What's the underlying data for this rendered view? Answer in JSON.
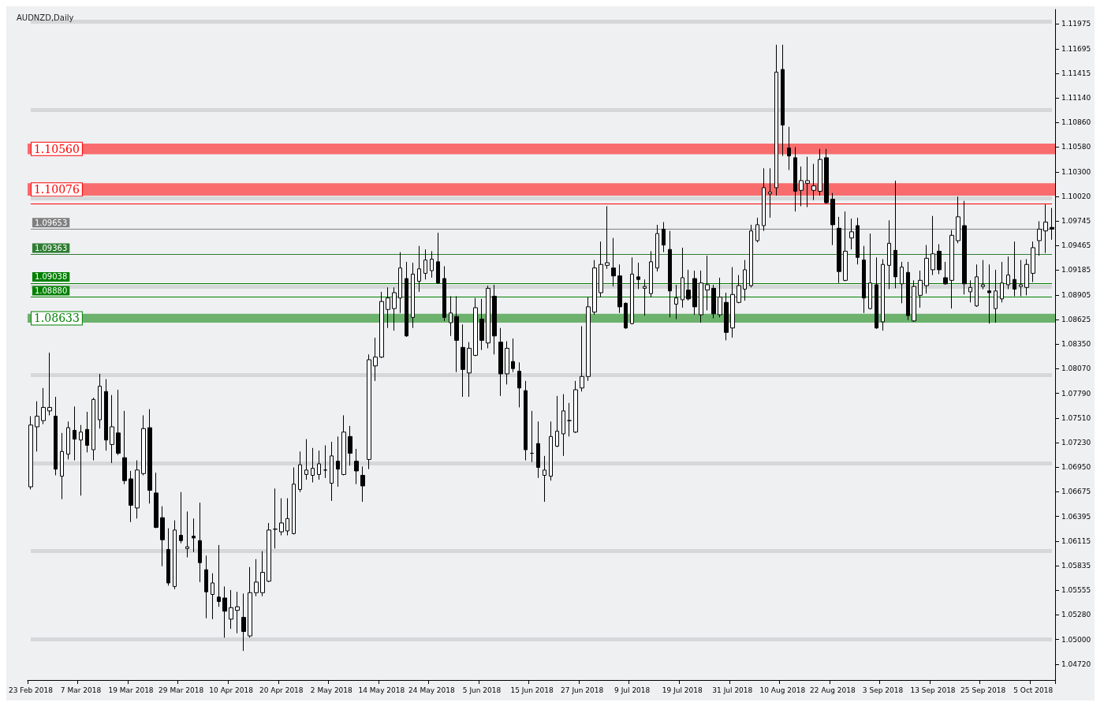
{
  "chart_data": {
    "type": "candlestick",
    "title": "AUDNZD,Daily",
    "categories": [
      "23 Feb 2018",
      null,
      null,
      null,
      null,
      null,
      null,
      null,
      "7 Mar 2018",
      null,
      null,
      null,
      null,
      null,
      null,
      null,
      "19 Mar 2018",
      null,
      null,
      null,
      null,
      null,
      null,
      null,
      "29 Mar 2018",
      null,
      null,
      null,
      null,
      null,
      null,
      null,
      "10 Apr 2018",
      null,
      null,
      null,
      null,
      null,
      null,
      null,
      "20 Apr 2018",
      null,
      null,
      null,
      null,
      null,
      null,
      null,
      "2 May 2018",
      null,
      null,
      null,
      null,
      null,
      null,
      null,
      "14 May 2018",
      null,
      null,
      null,
      null,
      null,
      null,
      null,
      "24 May 2018",
      null,
      null,
      null,
      null,
      null,
      null,
      null,
      "5 Jun 2018",
      null,
      null,
      null,
      null,
      null,
      null,
      null,
      "15 Jun 2018",
      null,
      null,
      null,
      null,
      null,
      null,
      null,
      "27 Jun 2018",
      null,
      null,
      null,
      null,
      null,
      null,
      null,
      "9 Jul 2018",
      null,
      null,
      null,
      null,
      null,
      null,
      null,
      "19 Jul 2018",
      null,
      null,
      null,
      null,
      null,
      null,
      null,
      "31 Jul 2018",
      null,
      null,
      null,
      null,
      null,
      null,
      null,
      "10 Aug 2018",
      null,
      null,
      null,
      null,
      null,
      null,
      null,
      "22 Aug 2018",
      null,
      null,
      null,
      null,
      null,
      null,
      null,
      "3 Sep 2018",
      null,
      null,
      null,
      null,
      null,
      null,
      null,
      "13 Sep 2018",
      null,
      null,
      null,
      null,
      null,
      null,
      null,
      "25 Sep 2018",
      null,
      null,
      null,
      null,
      null,
      null,
      null,
      "5 Oct 2018",
      null,
      null,
      null
    ],
    "series": [
      {
        "color": "#000000",
        "ohlc": [
          [
            1.0673,
            1.0753,
            1.067,
            1.0743
          ],
          [
            1.0741,
            1.077,
            1.0713,
            1.0753
          ],
          [
            1.0748,
            1.0785,
            1.0744,
            1.0763
          ],
          [
            1.0759,
            1.0825,
            1.0754,
            1.0763
          ],
          [
            1.0753,
            1.0775,
            1.0686,
            1.0693
          ],
          [
            1.0685,
            1.0734,
            1.0659,
            1.0713
          ],
          [
            1.071,
            1.0747,
            1.0704,
            1.074
          ],
          [
            1.0737,
            1.0764,
            1.0703,
            1.0727
          ],
          [
            1.0726,
            1.0743,
            1.0663,
            1.0735
          ],
          [
            1.0738,
            1.0758,
            1.0712,
            1.072
          ],
          [
            1.0715,
            1.0774,
            1.0703,
            1.0772
          ],
          [
            1.0749,
            1.0801,
            1.0739,
            1.0787
          ],
          [
            1.0781,
            1.0795,
            1.0714,
            1.0726
          ],
          [
            1.0721,
            1.0777,
            1.07,
            1.0741
          ],
          [
            1.0734,
            1.0783,
            1.0709,
            1.0711
          ],
          [
            1.0706,
            1.0759,
            1.0676,
            1.068
          ],
          [
            1.0682,
            1.0691,
            1.0633,
            1.0652
          ],
          [
            1.0649,
            1.0703,
            1.0637,
            1.0692
          ],
          [
            1.0688,
            1.0754,
            1.0686,
            1.0739
          ],
          [
            1.074,
            1.0761,
            1.0654,
            1.0669
          ],
          [
            1.0666,
            1.0689,
            1.0626,
            1.0627
          ],
          [
            1.0638,
            1.0651,
            1.0583,
            1.0613
          ],
          [
            1.0602,
            1.0626,
            1.0561,
            1.0564
          ],
          [
            1.056,
            1.0635,
            1.0557,
            1.0624
          ],
          [
            1.0618,
            1.0667,
            1.0609,
            1.0612
          ],
          [
            1.0603,
            1.0645,
            1.0593,
            1.0605
          ],
          [
            1.0617,
            1.0637,
            1.0599,
            1.0615
          ],
          [
            1.0612,
            1.0655,
            1.0565,
            1.0587
          ],
          [
            1.0579,
            1.0595,
            1.0524,
            1.0554
          ],
          [
            1.0551,
            1.0575,
            1.0523,
            1.0564
          ],
          [
            1.0548,
            1.0607,
            1.0537,
            1.0543
          ],
          [
            1.0547,
            1.056,
            1.0502,
            1.0532
          ],
          [
            1.0523,
            1.0556,
            1.0512,
            1.0536
          ],
          [
            1.0533,
            1.0554,
            1.0507,
            1.0537
          ],
          [
            1.0525,
            1.0552,
            1.0487,
            1.0509
          ],
          [
            1.0504,
            1.0582,
            1.0502,
            1.0553
          ],
          [
            1.0553,
            1.0591,
            1.0549,
            1.0565
          ],
          [
            1.0553,
            1.06,
            1.0549,
            1.0576
          ],
          [
            1.0566,
            1.0632,
            1.0565,
            1.0624
          ],
          [
            1.0625,
            1.0671,
            1.0603,
            1.0625
          ],
          [
            1.0622,
            1.066,
            1.0618,
            1.0632
          ],
          [
            1.0623,
            1.066,
            1.0618,
            1.0637
          ],
          [
            1.062,
            1.0695,
            1.0619,
            1.0676
          ],
          [
            1.067,
            1.0713,
            1.0667,
            1.0698
          ],
          [
            1.0687,
            1.0727,
            1.0681,
            1.0692
          ],
          [
            1.0686,
            1.0717,
            1.0678,
            1.0694
          ],
          [
            1.0687,
            1.0714,
            1.0681,
            1.0699
          ],
          [
            1.0692,
            1.072,
            1.0683,
            1.0692
          ],
          [
            1.0677,
            1.0724,
            1.0657,
            1.0708
          ],
          [
            1.0702,
            1.073,
            1.0673,
            1.0693
          ],
          [
            1.0687,
            1.0754,
            1.0686,
            1.0735
          ],
          [
            1.073,
            1.0742,
            1.0697,
            1.0711
          ],
          [
            1.0702,
            1.0716,
            1.0676,
            1.0691
          ],
          [
            1.0686,
            1.0696,
            1.0656,
            1.0674
          ],
          [
            1.0704,
            1.0823,
            1.0693,
            1.0817
          ],
          [
            1.081,
            1.0842,
            1.0793,
            1.082
          ],
          [
            1.082,
            1.0894,
            1.0819,
            1.0883
          ],
          [
            1.0874,
            1.0899,
            1.0853,
            1.0887
          ],
          [
            1.0875,
            1.0899,
            1.085,
            1.0893
          ],
          [
            1.0887,
            1.0939,
            1.087,
            1.0921
          ],
          [
            1.0909,
            1.0928,
            1.0843,
            1.0844
          ],
          [
            1.0865,
            1.0927,
            1.0853,
            1.0914
          ],
          [
            1.0906,
            1.0946,
            1.0894,
            1.092
          ],
          [
            1.0915,
            1.0942,
            1.0908,
            1.093
          ],
          [
            1.0918,
            1.094,
            1.091,
            1.0931
          ],
          [
            1.0928,
            1.0961,
            1.0903,
            1.0904
          ],
          [
            1.0909,
            1.0923,
            1.0861,
            1.0865
          ],
          [
            1.0859,
            1.0889,
            1.0844,
            1.087
          ],
          [
            1.0866,
            1.0889,
            1.0803,
            1.0839
          ],
          [
            1.0831,
            1.0857,
            1.0775,
            1.0806
          ],
          [
            1.0802,
            1.0837,
            1.0775,
            1.083
          ],
          [
            1.0822,
            1.0887,
            1.0821,
            1.0876
          ],
          [
            1.0863,
            1.0886,
            1.0828,
            1.0839
          ],
          [
            1.0836,
            1.0901,
            1.083,
            1.0898
          ],
          [
            1.0889,
            1.0902,
            1.0823,
            1.0844
          ],
          [
            1.0837,
            1.0853,
            1.0776,
            1.0801
          ],
          [
            1.0801,
            1.0838,
            1.0789,
            1.083
          ],
          [
            1.0815,
            1.0841,
            1.0803,
            1.0807
          ],
          [
            1.0804,
            1.0814,
            1.0763,
            1.0785
          ],
          [
            1.0782,
            1.0793,
            1.0703,
            1.0715
          ],
          [
            1.0711,
            1.0759,
            1.0701,
            1.0711
          ],
          [
            1.0722,
            1.0747,
            1.0683,
            1.0695
          ],
          [
            1.0686,
            1.0708,
            1.0656,
            1.0692
          ],
          [
            1.0685,
            1.0747,
            1.068,
            1.073
          ],
          [
            1.0719,
            1.0776,
            1.0718,
            1.0736
          ],
          [
            1.0733,
            1.0778,
            1.0708,
            1.0759
          ],
          [
            1.0748,
            1.0768,
            1.073,
            1.0748
          ],
          [
            1.0735,
            1.0793,
            1.0734,
            1.0783
          ],
          [
            1.0785,
            1.0855,
            1.0781,
            1.0798
          ],
          [
            1.0798,
            1.0888,
            1.0793,
            1.0877
          ],
          [
            1.0871,
            1.093,
            1.0868,
            1.0921
          ],
          [
            1.0893,
            1.0951,
            1.0888,
            1.0925
          ],
          [
            1.0924,
            1.0991,
            1.092,
            1.0927
          ],
          [
            1.0921,
            1.0955,
            1.09,
            1.0912
          ],
          [
            1.0912,
            1.0925,
            1.087,
            1.0877
          ],
          [
            1.0881,
            1.0882,
            1.0852,
            1.0853
          ],
          [
            1.0858,
            1.0933,
            1.0857,
            1.0914
          ],
          [
            1.0911,
            1.0927,
            1.0897,
            1.0908
          ],
          [
            1.0898,
            1.0908,
            1.0867,
            1.09
          ],
          [
            1.0892,
            1.094,
            1.0888,
            1.0928
          ],
          [
            1.0921,
            1.097,
            1.0917,
            1.096
          ],
          [
            1.0965,
            1.0973,
            1.0939,
            1.0947
          ],
          [
            1.0942,
            1.0963,
            1.0865,
            1.0895
          ],
          [
            1.088,
            1.0902,
            1.0863,
            1.0887
          ],
          [
            1.0885,
            1.0944,
            1.0876,
            1.091
          ],
          [
            1.0896,
            1.0919,
            1.0884,
            1.0886
          ],
          [
            1.0909,
            1.0918,
            1.0868,
            1.0877
          ],
          [
            1.0868,
            1.0918,
            1.0859,
            1.0904
          ],
          [
            1.0896,
            1.0935,
            1.0873,
            1.0902
          ],
          [
            1.0898,
            1.0902,
            1.0864,
            1.0869
          ],
          [
            1.0868,
            1.091,
            1.0865,
            1.0888
          ],
          [
            1.0882,
            1.0893,
            1.0839,
            1.0848
          ],
          [
            1.0853,
            1.0922,
            1.0842,
            1.0891
          ],
          [
            1.0882,
            1.0913,
            1.0881,
            1.0901
          ],
          [
            1.0897,
            1.093,
            1.0884,
            1.0919
          ],
          [
            1.0901,
            1.097,
            1.0899,
            1.0963
          ],
          [
            1.0952,
            1.0978,
            1.095,
            1.097
          ],
          [
            1.0969,
            1.1034,
            1.0963,
            1.1012
          ],
          [
            1.1005,
            1.1034,
            1.0978,
            1.1007
          ],
          [
            1.1012,
            1.1174,
            1.1003,
            1.1143
          ],
          [
            1.1146,
            1.1174,
            1.1048,
            1.1083
          ],
          [
            1.1057,
            1.1081,
            1.1032,
            1.1048
          ],
          [
            1.1046,
            1.1058,
            1.0985,
            1.1008
          ],
          [
            1.1009,
            1.1036,
            1.0991,
            1.102
          ],
          [
            1.1017,
            1.1047,
            1.099,
            1.102
          ],
          [
            1.1009,
            1.1039,
            1.0998,
            1.1014
          ],
          [
            1.1008,
            1.1056,
            1.1003,
            1.1044
          ],
          [
            1.1046,
            1.1056,
            1.0994,
            1.0995
          ],
          [
            1.0999,
            1.1006,
            1.0947,
            1.097
          ],
          [
            1.0966,
            1.0979,
            1.0904,
            1.0917
          ],
          [
            1.0907,
            1.0985,
            1.0906,
            1.094
          ],
          [
            1.0955,
            1.0977,
            1.0942,
            1.0962
          ],
          [
            1.0969,
            1.0978,
            1.0925,
            1.0933
          ],
          [
            1.093,
            1.0946,
            1.087,
            1.0887
          ],
          [
            1.0875,
            1.096,
            1.0874,
            1.0904
          ],
          [
            1.0902,
            1.0933,
            1.0852,
            1.0853
          ],
          [
            1.086,
            1.0931,
            1.085,
            1.0925
          ],
          [
            1.0924,
            1.0975,
            1.0897,
            1.0949
          ],
          [
            1.0941,
            1.102,
            1.0898,
            1.0911
          ],
          [
            1.0903,
            1.0928,
            1.0881,
            1.0922
          ],
          [
            1.0916,
            1.0928,
            1.0862,
            1.0867
          ],
          [
            1.0861,
            1.0907,
            1.086,
            1.09
          ],
          [
            1.089,
            1.0918,
            1.0876,
            1.0907
          ],
          [
            1.0901,
            1.0947,
            1.0892,
            1.0932
          ],
          [
            1.0919,
            1.098,
            1.0913,
            1.0937
          ],
          [
            1.094,
            1.0948,
            1.0914,
            1.0919
          ],
          [
            1.091,
            1.0928,
            1.0902,
            1.0903
          ],
          [
            1.0907,
            1.0964,
            1.0875,
            1.0958
          ],
          [
            1.0952,
            1.1002,
            1.0949,
            1.0979
          ],
          [
            1.0969,
            1.0997,
            1.0891,
            1.0903
          ],
          [
            1.0894,
            1.0907,
            1.0882,
            1.0899
          ],
          [
            1.0878,
            1.0925,
            1.0877,
            1.0911
          ],
          [
            1.09,
            1.093,
            1.0897,
            1.0902
          ],
          [
            1.0895,
            1.0925,
            1.0858,
            1.0893
          ],
          [
            1.0875,
            1.0919,
            1.0859,
            1.0895
          ],
          [
            1.0886,
            1.0928,
            1.0882,
            1.0904
          ],
          [
            1.0902,
            1.0934,
            1.0897,
            1.0913
          ],
          [
            1.0908,
            1.0951,
            1.0889,
            1.0897
          ],
          [
            1.09,
            1.093,
            1.0889,
            1.0902
          ],
          [
            1.0899,
            1.0931,
            1.089,
            1.0925
          ],
          [
            1.0915,
            1.0951,
            1.0905,
            1.0944
          ],
          [
            1.0952,
            1.0974,
            1.0935,
            1.0965
          ],
          [
            1.0963,
            1.0993,
            1.0938,
            1.0973
          ],
          [
            1.0967,
            1.0989,
            1.0953,
            1.0965
          ]
        ]
      }
    ],
    "ylim": [
      1.0454,
      1.1214
    ],
    "yticks": [
      {
        "value": 1.0472,
        "label": "1.04720"
      },
      {
        "value": 1.05,
        "label": "1.05000"
      },
      {
        "value": 1.0528,
        "label": "1.05280"
      },
      1.05555,
      1.05835,
      1.06115,
      1.06395,
      1.06675,
      {
        "value": 1.0695,
        "label": "1.06950"
      },
      {
        "value": 1.0723,
        "label": "1.07230"
      },
      {
        "value": 1.0751,
        "label": "1.07510"
      },
      {
        "value": 1.0779,
        "label": "1.07790"
      },
      {
        "value": 1.0807,
        "label": "1.08070"
      },
      {
        "value": 1.0835,
        "label": "1.08350"
      },
      1.08625,
      1.08905,
      1.09185,
      1.09465,
      1.09745,
      {
        "value": 1.1002,
        "label": "1.10020"
      },
      {
        "value": 1.103,
        "label": "1.10300"
      },
      {
        "value": 1.1058,
        "label": "1.10580"
      },
      {
        "value": 1.1086,
        "label": "1.10860"
      },
      {
        "value": 1.1114,
        "label": "1.11140"
      },
      1.11415,
      1.11695,
      1.11975
    ],
    "ref_lines": [
      {
        "axis": "y",
        "value": 1.05,
        "color": "#d6d7d8"
      },
      {
        "axis": "y",
        "value": 1.06,
        "color": "#d6d7d8"
      },
      {
        "axis": "y",
        "value": 1.07,
        "color": "#d6d7d8"
      },
      {
        "axis": "y",
        "value": 1.08,
        "color": "#d6d7d8"
      },
      {
        "axis": "y",
        "value": 1.09,
        "color": "#d6d7d8"
      },
      {
        "axis": "y",
        "value": 1.1,
        "color": "#d6d7d8"
      },
      {
        "axis": "y",
        "value": 1.11,
        "color": "#d6d7d8"
      },
      {
        "axis": "y",
        "value": 1.12,
        "color": "#d6d7d8"
      },
      {
        "axis": "y",
        "value": 1.09653,
        "label": "1.09653",
        "color": "#808080"
      },
      {
        "axis": "y",
        "value": 1.09363,
        "label": "1.09363",
        "color": "#2e7d32"
      },
      {
        "axis": "y",
        "value": 1.09038,
        "label": "1.09038",
        "color": "#008000"
      },
      {
        "axis": "y",
        "value": 1.0888,
        "label": "1.08880",
        "color": "#008000"
      },
      {
        "axis": "y",
        "value": 1.0994,
        "color": "#ff0000"
      }
    ],
    "bands": [
      {
        "axis": "y",
        "from": 1.105,
        "to": 1.1062,
        "label": "1.10560",
        "color": "#ff0000"
      },
      {
        "axis": "y",
        "from": 1.1003,
        "to": 1.1017,
        "label": "1.10076",
        "color": "#ff0000"
      },
      {
        "axis": "y",
        "from": 1.0859,
        "to": 1.0869,
        "label": "1.08633",
        "color": "#008000"
      }
    ]
  }
}
